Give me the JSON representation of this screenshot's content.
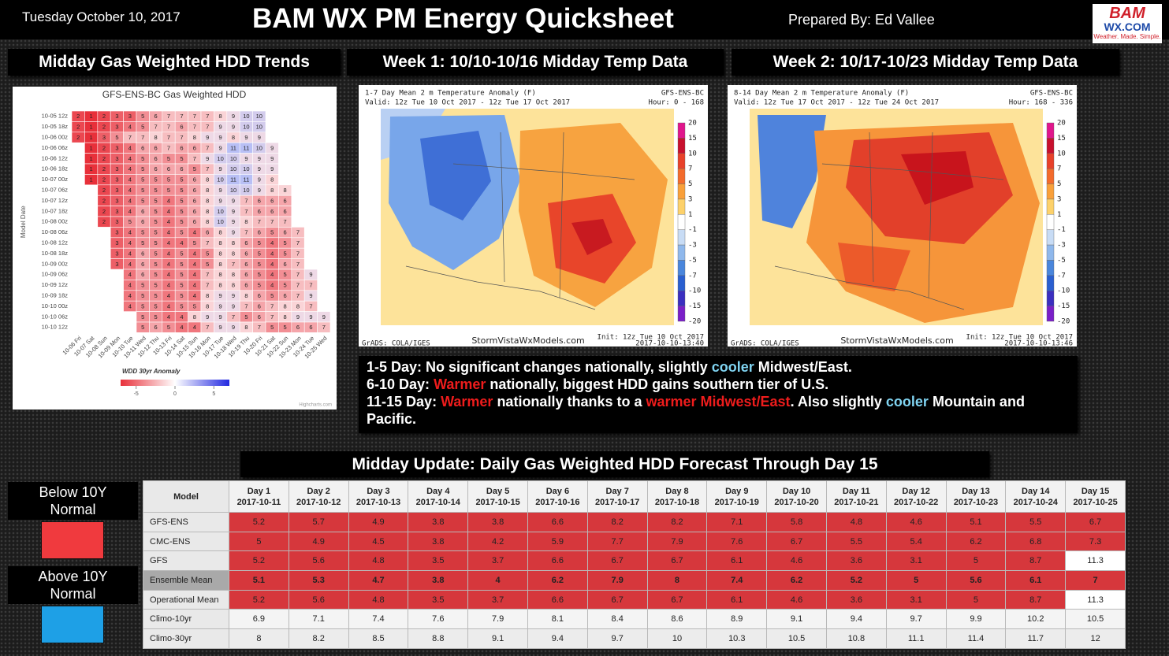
{
  "header": {
    "date": "Tuesday October 10, 2017",
    "title": "BAM WX PM Energy Quicksheet",
    "prepared_by": "Prepared By: Ed Vallee",
    "logo": {
      "top": "BAM",
      "middle": "WX.COM",
      "tagline": "Weather. Made. Simple."
    }
  },
  "sections": [
    "Midday Gas Weighted HDD Trends",
    "Week 1: 10/10-10/16 Midday Temp Data",
    "Week 2: 10/17-10/23 Midday Temp Data"
  ],
  "hdd_trends": {
    "title": "GFS-ENS-BC Gas Weighted HDD",
    "y_label": "Model Date",
    "rows": [
      "10-05 12z",
      "10-05 18z",
      "10-06 00z",
      "10-06 06z",
      "10-06 12z",
      "10-06 18z",
      "10-07 00z",
      "10-07 06z",
      "10-07 12z",
      "10-07 18z",
      "10-08 00z",
      "10-08 06z",
      "10-08 12z",
      "10-08 18z",
      "10-09 00z",
      "10-09 06z",
      "10-09 12z",
      "10-09 18z",
      "10-10 00z",
      "10-10 06z",
      "10-10 12z"
    ],
    "columns": [
      "10-06 Fri",
      "10-07 Sat",
      "10-08 Sun",
      "10-09 Mon",
      "10-10 Tue",
      "10-11 Wed",
      "10-12 Thu",
      "10-13 Fri",
      "10-14 Sat",
      "10-15 Sun",
      "10-16 Mon",
      "10-17 Tue",
      "10-18 Wed",
      "10-19 Thu",
      "10-20 Fri",
      "10-21 Sat",
      "10-22 Sun",
      "10-23 Mon",
      "10-24 Tue",
      "10-25 Wed"
    ],
    "values": [
      [
        2,
        1,
        2,
        3,
        3,
        5,
        6,
        7,
        7,
        7,
        7,
        8,
        9,
        10,
        10,
        null,
        null,
        null,
        null,
        null
      ],
      [
        2,
        1,
        2,
        3,
        4,
        5,
        7,
        7,
        6,
        7,
        7,
        9,
        9,
        10,
        10,
        null,
        null,
        null,
        null,
        null
      ],
      [
        2,
        1,
        3,
        5,
        7,
        7,
        8,
        7,
        7,
        8,
        9,
        9,
        8,
        9,
        9,
        null,
        null,
        null,
        null,
        null
      ],
      [
        null,
        1,
        2,
        3,
        4,
        6,
        6,
        7,
        6,
        6,
        7,
        9,
        11,
        11,
        10,
        9,
        null,
        null,
        null,
        null
      ],
      [
        null,
        1,
        2,
        3,
        4,
        5,
        6,
        5,
        5,
        7,
        9,
        10,
        10,
        9,
        9,
        9,
        null,
        null,
        null,
        null
      ],
      [
        null,
        1,
        2,
        3,
        4,
        5,
        6,
        6,
        6,
        5,
        7,
        9,
        10,
        10,
        9,
        9,
        null,
        null,
        null,
        null
      ],
      [
        null,
        1,
        2,
        3,
        4,
        5,
        5,
        5,
        5,
        6,
        8,
        10,
        11,
        11,
        9,
        8,
        null,
        null,
        null,
        null
      ],
      [
        null,
        null,
        2,
        3,
        4,
        5,
        5,
        5,
        5,
        6,
        8,
        9,
        10,
        10,
        9,
        8,
        8,
        null,
        null,
        null
      ],
      [
        null,
        null,
        2,
        3,
        4,
        5,
        5,
        4,
        5,
        6,
        8,
        9,
        9,
        7,
        6,
        6,
        6,
        null,
        null,
        null
      ],
      [
        null,
        null,
        2,
        3,
        4,
        6,
        5,
        4,
        5,
        6,
        8,
        10,
        9,
        7,
        6,
        6,
        6,
        null,
        null,
        null
      ],
      [
        null,
        null,
        2,
        3,
        5,
        6,
        5,
        4,
        5,
        6,
        8,
        10,
        9,
        8,
        7,
        7,
        7,
        null,
        null,
        null
      ],
      [
        null,
        null,
        null,
        3,
        4,
        5,
        5,
        4,
        5,
        4,
        6,
        8,
        9,
        7,
        6,
        5,
        6,
        7,
        null,
        null
      ],
      [
        null,
        null,
        null,
        3,
        4,
        5,
        5,
        4,
        4,
        5,
        7,
        8,
        8,
        6,
        5,
        4,
        5,
        7,
        null,
        null
      ],
      [
        null,
        null,
        null,
        3,
        4,
        6,
        5,
        4,
        5,
        4,
        5,
        8,
        8,
        6,
        5,
        4,
        5,
        7,
        null,
        null
      ],
      [
        null,
        null,
        null,
        3,
        4,
        6,
        5,
        4,
        5,
        4,
        5,
        8,
        7,
        6,
        5,
        4,
        6,
        7,
        null,
        null
      ],
      [
        null,
        null,
        null,
        null,
        4,
        6,
        5,
        4,
        5,
        4,
        7,
        8,
        8,
        6,
        5,
        4,
        5,
        7,
        9,
        null
      ],
      [
        null,
        null,
        null,
        null,
        4,
        5,
        5,
        4,
        5,
        4,
        7,
        8,
        8,
        6,
        5,
        4,
        5,
        7,
        7,
        null
      ],
      [
        null,
        null,
        null,
        null,
        4,
        5,
        5,
        4,
        5,
        4,
        8,
        9,
        9,
        8,
        6,
        5,
        6,
        7,
        9,
        null
      ],
      [
        null,
        null,
        null,
        null,
        4,
        5,
        5,
        4,
        5,
        5,
        8,
        9,
        9,
        7,
        6,
        7,
        8,
        8,
        7,
        null
      ],
      [
        null,
        null,
        null,
        null,
        null,
        5,
        5,
        4,
        4,
        8,
        9,
        9,
        7,
        5,
        6,
        7,
        8,
        9,
        9,
        9
      ],
      [
        null,
        null,
        null,
        null,
        null,
        5,
        6,
        5,
        4,
        4,
        7,
        9,
        9,
        8,
        7,
        5,
        5,
        6,
        6,
        7
      ]
    ],
    "legend": {
      "title": "WDD 30yr Anomaly",
      "ticks": [
        -5,
        0,
        5
      ]
    },
    "credit": "Highcharts.com"
  },
  "maps": [
    {
      "title": "1-7 Day Mean 2 m Temperature Anomaly (F)",
      "model": "GFS-ENS-BC",
      "valid": "Valid: 12z Tue 10 Oct 2017 - 12z Tue 17 Oct 2017",
      "hour": "Hour: 0 - 168",
      "site": "StormVistaWxModels.com",
      "init": "Init: 12z Tue 10 Oct 2017",
      "stamp": "2017-10-10-13:40",
      "grads": "GrADS: COLA/IGES"
    },
    {
      "title": "8-14 Day Mean 2 m Temperature Anomaly (F)",
      "model": "GFS-ENS-BC",
      "valid": "Valid: 12z Tue 17 Oct 2017 - 12z Tue 24 Oct 2017",
      "hour": "Hour: 168 - 336",
      "site": "StormVistaWxModels.com",
      "init": "Init: 12z Tue 10 Oct 2017",
      "stamp": "2017-10-10-13:46",
      "grads": "GrADS: COLA/IGES"
    }
  ],
  "colorbar": {
    "labels": [
      20,
      15,
      10,
      7,
      5,
      3,
      1,
      -1,
      -3,
      -5,
      -7,
      -10,
      -15,
      -20
    ],
    "colors": [
      "#e0168c",
      "#c8102e",
      "#e8412a",
      "#f36b2c",
      "#f9a03a",
      "#fdd16a",
      "#ffffff",
      "#c8dcf5",
      "#8fb8ec",
      "#4a86dc",
      "#2a5fd0",
      "#3b2fc0",
      "#7a1fc8"
    ]
  },
  "summary": [
    [
      {
        "text": "1-5 Day:"
      },
      {
        "text": " No significant changes nationally, slightly "
      },
      {
        "text": "cooler",
        "color": "#80d4f2"
      },
      {
        "text": " Midwest/East."
      }
    ],
    [
      {
        "text": "6-10 Day:"
      },
      {
        "text": " "
      },
      {
        "text": "Warmer",
        "color": "#ee1c1c"
      },
      {
        "text": " nationally, biggest HDD gains southern tier of U.S."
      }
    ],
    [
      {
        "text": "11-15 Day:"
      },
      {
        "text": " "
      },
      {
        "text": "Warmer",
        "color": "#ee1c1c"
      },
      {
        "text": " nationally thanks to a "
      },
      {
        "text": "warmer Midwest/East",
        "color": "#ee1c1c"
      },
      {
        "text": ". Also slightly "
      },
      {
        "text": "cooler",
        "color": "#80d4f2"
      },
      {
        "text": " Mountain and Pacific."
      }
    ]
  ],
  "legend": [
    {
      "label": "Below 10Y Normal",
      "color": "#f03a3e"
    },
    {
      "label": "Above 10Y Normal",
      "color": "#1ea0e6"
    }
  ],
  "table": {
    "title": "Midday Update: Daily Gas Weighted HDD Forecast Through Day 15",
    "model_header": "Model",
    "days": [
      "Day 1",
      "Day 2",
      "Day 3",
      "Day 4",
      "Day 5",
      "Day 6",
      "Day 7",
      "Day 8",
      "Day 9",
      "Day 10",
      "Day 11",
      "Day 12",
      "Day 13",
      "Day 14",
      "Day 15"
    ],
    "dates": [
      "2017-10-11",
      "2017-10-12",
      "2017-10-13",
      "2017-10-14",
      "2017-10-15",
      "2017-10-16",
      "2017-10-17",
      "2017-10-18",
      "2017-10-19",
      "2017-10-20",
      "2017-10-21",
      "2017-10-22",
      "2017-10-23",
      "2017-10-24",
      "2017-10-25"
    ],
    "rows": [
      {
        "label": "GFS-ENS",
        "values": [
          5.2,
          5.7,
          4.9,
          3.8,
          3.8,
          6.6,
          8.2,
          8.2,
          7.1,
          5.8,
          4.8,
          4.6,
          5.1,
          5.5,
          6.7
        ],
        "colors": [
          "#d6373c",
          "#d6373c",
          "#d6373c",
          "#d6373c",
          "#d6373c",
          "#d6373c",
          "#d6373c",
          "#d6373c",
          "#d6373c",
          "#d6373c",
          "#d6373c",
          "#d6373c",
          "#d6373c",
          "#d6373c",
          "#d6373c"
        ]
      },
      {
        "label": "CMC-ENS",
        "values": [
          5,
          4.9,
          4.5,
          3.8,
          4.2,
          5.9,
          7.7,
          7.9,
          7.6,
          6.7,
          5.5,
          5.4,
          6.2,
          6.8,
          7.3
        ],
        "colors": [
          "#d6373c",
          "#d6373c",
          "#d6373c",
          "#d6373c",
          "#d6373c",
          "#d6373c",
          "#d6373c",
          "#d6373c",
          "#d6373c",
          "#d6373c",
          "#d6373c",
          "#d6373c",
          "#d6373c",
          "#d6373c",
          "#d6373c"
        ]
      },
      {
        "label": "GFS",
        "values": [
          5.2,
          5.6,
          4.8,
          3.5,
          3.7,
          6.6,
          6.7,
          6.7,
          6.1,
          4.6,
          3.6,
          3.1,
          5,
          8.7,
          11.3
        ],
        "colors": [
          "#d6373c",
          "#d6373c",
          "#d6373c",
          "#d6373c",
          "#d6373c",
          "#d6373c",
          "#d6373c",
          "#d6373c",
          "#d6373c",
          "#d6373c",
          "#d6373c",
          "#d6373c",
          "#d6373c",
          "#d6373c",
          "#ffffff"
        ]
      },
      {
        "label": "Ensemble Mean",
        "bold": true,
        "values": [
          5.1,
          5.3,
          4.7,
          3.8,
          4,
          6.2,
          7.9,
          8,
          7.4,
          6.2,
          5.2,
          5,
          5.6,
          6.1,
          7
        ],
        "colors": [
          "#d6373c",
          "#d6373c",
          "#d6373c",
          "#d6373c",
          "#d6373c",
          "#d6373c",
          "#d6373c",
          "#d6373c",
          "#d6373c",
          "#d6373c",
          "#d6373c",
          "#d6373c",
          "#d6373c",
          "#d6373c",
          "#d6373c"
        ]
      },
      {
        "label": "Operational Mean",
        "values": [
          5.2,
          5.6,
          4.8,
          3.5,
          3.7,
          6.6,
          6.7,
          6.7,
          6.1,
          4.6,
          3.6,
          3.1,
          5,
          8.7,
          11.3
        ],
        "colors": [
          "#d6373c",
          "#d6373c",
          "#d6373c",
          "#d6373c",
          "#d6373c",
          "#d6373c",
          "#d6373c",
          "#d6373c",
          "#d6373c",
          "#d6373c",
          "#d6373c",
          "#d6373c",
          "#d6373c",
          "#d6373c",
          "#ffffff"
        ]
      },
      {
        "label": "Climo-10yr",
        "values": [
          6.9,
          7.1,
          7.4,
          7.6,
          7.9,
          8.1,
          8.4,
          8.6,
          8.9,
          9.1,
          9.4,
          9.7,
          9.9,
          10.2,
          10.5
        ],
        "colors": [
          "#f4f4f4",
          "#f4f4f4",
          "#f4f4f4",
          "#f4f4f4",
          "#f4f4f4",
          "#f4f4f4",
          "#f4f4f4",
          "#f4f4f4",
          "#f4f4f4",
          "#f4f4f4",
          "#f4f4f4",
          "#f4f4f4",
          "#f4f4f4",
          "#f4f4f4",
          "#f4f4f4"
        ]
      },
      {
        "label": "Climo-30yr",
        "values": [
          8,
          8.2,
          8.5,
          8.8,
          9.1,
          9.4,
          9.7,
          10,
          10.3,
          10.5,
          10.8,
          11.1,
          11.4,
          11.7,
          12
        ],
        "colors": [
          "#ececec",
          "#ececec",
          "#ececec",
          "#ececec",
          "#ececec",
          "#ececec",
          "#ececec",
          "#ececec",
          "#ececec",
          "#ececec",
          "#ececec",
          "#ececec",
          "#ececec",
          "#ececec",
          "#ececec"
        ]
      }
    ]
  }
}
